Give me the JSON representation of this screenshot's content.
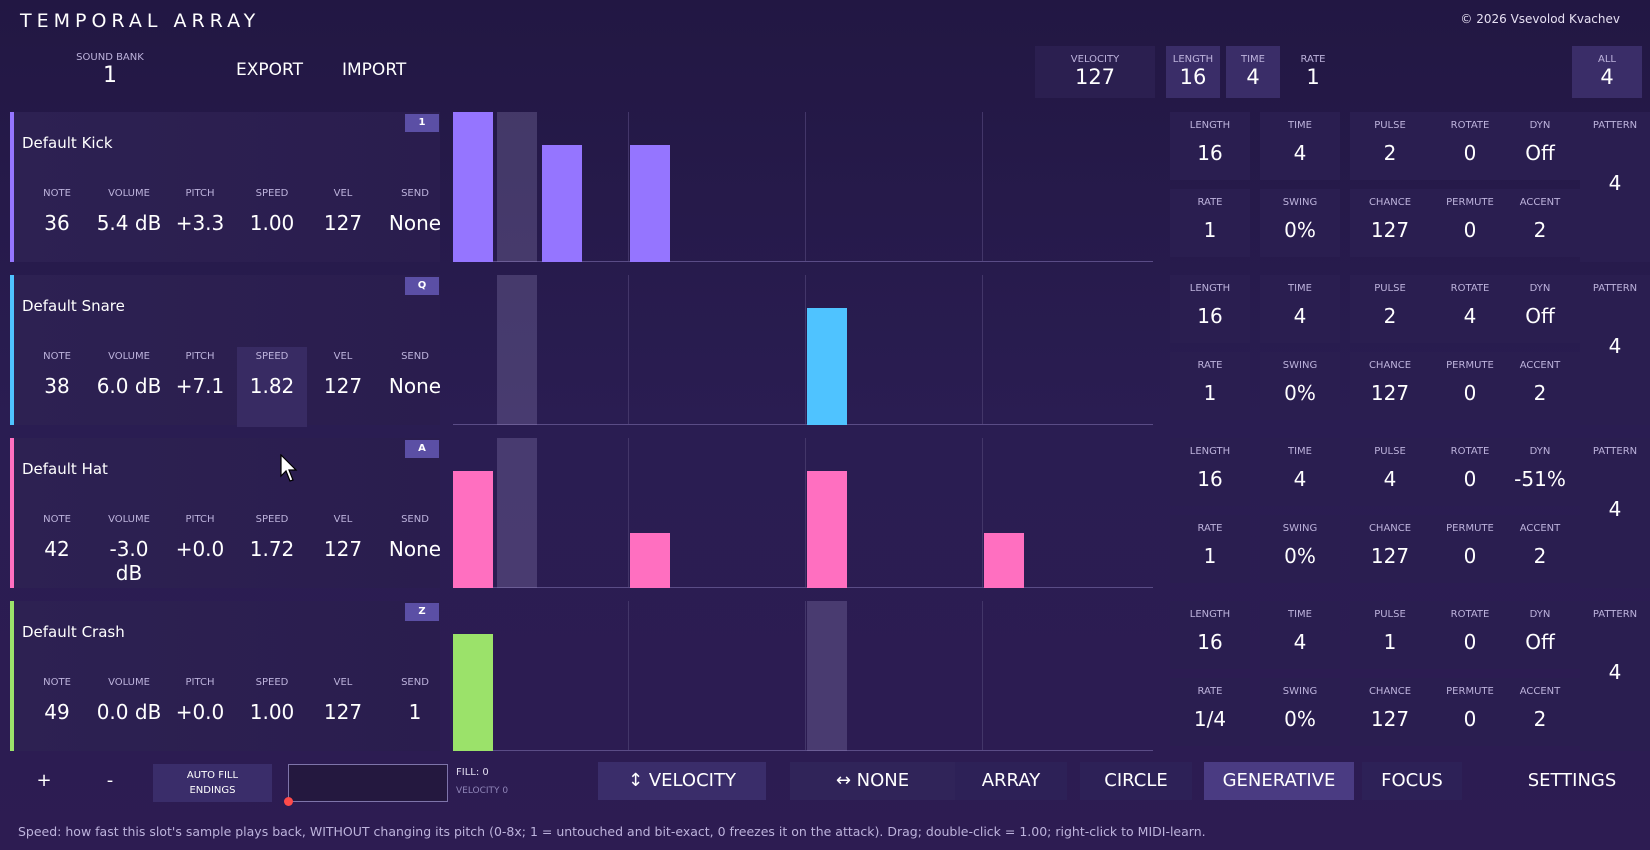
{
  "app": {
    "title": "TEMPORAL ARRAY",
    "copyright": "© 2026 Vsevolod Kvachev"
  },
  "top": {
    "sound_bank": {
      "label": "SOUND BANK",
      "value": "1"
    },
    "export": "EXPORT",
    "import": "IMPORT",
    "velocity": {
      "label": "VELOCITY",
      "value": "127"
    },
    "length": {
      "label": "LENGTH",
      "value": "16"
    },
    "time": {
      "label": "TIME",
      "value": "4"
    },
    "rate": {
      "label": "RATE",
      "value": "1"
    },
    "all": {
      "label": "ALL",
      "value": "4"
    }
  },
  "param_labels": [
    "NOTE",
    "VOLUME",
    "PITCH",
    "SPEED",
    "VEL",
    "SEND"
  ],
  "right_labels": {
    "row1": [
      "LENGTH",
      "TIME",
      "PULSE",
      "ROTATE",
      "DYN"
    ],
    "row2": [
      "RATE",
      "SWING",
      "CHANCE",
      "PERMUTE",
      "ACCENT"
    ],
    "pattern": "PATTERN"
  },
  "lanes": [
    {
      "name": "Default Kick",
      "key": "1",
      "color": "#9575ff",
      "params": [
        "36",
        "5.4 dB",
        "+3.3",
        "1.00",
        "127",
        "None"
      ],
      "steps": [
        {
          "index": 0,
          "level": 1.0
        },
        {
          "index": 2,
          "level": 0.78
        },
        {
          "index": 4,
          "level": 0.78
        }
      ],
      "right": {
        "row1": [
          "16",
          "4",
          "2",
          "0",
          "Off"
        ],
        "row2": [
          "1",
          "0%",
          "127",
          "0",
          "2"
        ],
        "pattern": "4"
      }
    },
    {
      "name": "Default Snare",
      "key": "Q",
      "color": "#4fc3ff",
      "params": [
        "38",
        "6.0 dB",
        "+7.1",
        "1.82",
        "127",
        "None"
      ],
      "steps": [
        {
          "index": 8,
          "level": 0.78
        }
      ],
      "right": {
        "row1": [
          "16",
          "4",
          "2",
          "4",
          "Off"
        ],
        "row2": [
          "1",
          "0%",
          "127",
          "0",
          "2"
        ],
        "pattern": "4"
      }
    },
    {
      "name": "Default Hat",
      "key": "A",
      "color": "#ff6fc0",
      "params": [
        "42",
        "-3.0 dB",
        "+0.0",
        "1.72",
        "127",
        "None"
      ],
      "steps": [
        {
          "index": 0,
          "level": 0.78
        },
        {
          "index": 4,
          "level": 0.37
        },
        {
          "index": 8,
          "level": 0.78
        },
        {
          "index": 12,
          "level": 0.37
        }
      ],
      "right": {
        "row1": [
          "16",
          "4",
          "4",
          "0",
          "-51%"
        ],
        "row2": [
          "1",
          "0%",
          "127",
          "0",
          "2"
        ],
        "pattern": "4"
      }
    },
    {
      "name": "Default Crash",
      "key": "Z",
      "color": "#9be26a",
      "params": [
        "49",
        "0.0 dB",
        "+0.0",
        "1.00",
        "127",
        "1"
      ],
      "steps": [
        {
          "index": 0,
          "level": 0.78
        }
      ],
      "right": {
        "row1": [
          "16",
          "4",
          "1",
          "0",
          "Off"
        ],
        "row2": [
          "1/4",
          "0%",
          "127",
          "0",
          "2"
        ],
        "pattern": "4"
      }
    }
  ],
  "bottom": {
    "plus": "+",
    "minus": "-",
    "auto_fill": "AUTO FILL ENDINGS",
    "fill_label": "FILL: 0",
    "velocity_label": "VELOCITY 0",
    "velocity_btn": "↕ VELOCITY",
    "none_btn": "↔ NONE",
    "array": "ARRAY",
    "circle": "CIRCLE",
    "generative": "GENERATIVE",
    "focus": "FOCUS",
    "settings": "SETTINGS"
  },
  "hint": "Speed: how fast this slot's sample plays back, WITHOUT changing its pitch (0-8x; 1 = untouched and bit-exact, 0 freezes it on the attack). Drag; double-click = 1.00; right-click to MIDI-learn."
}
